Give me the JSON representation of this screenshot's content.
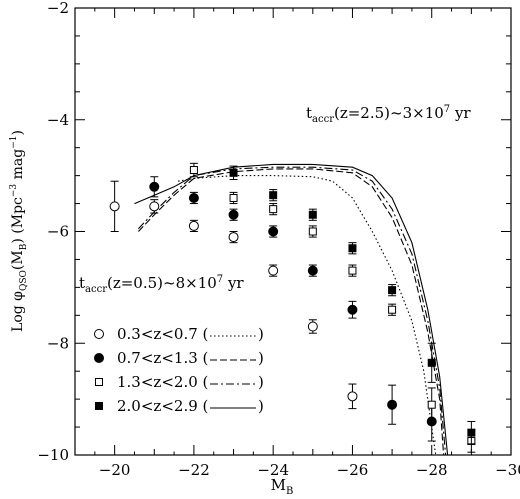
{
  "chart_data": {
    "type": "scatter",
    "title": "",
    "xlabel_main": "M",
    "xlabel_sub": "B",
    "ylabel": "Log φQSO(MB) (Mpc⁻³ mag⁻¹)",
    "xlim": [
      -19,
      -30
    ],
    "ylim": [
      -10,
      -2
    ],
    "x_ticks": [
      -20,
      -22,
      -24,
      -26,
      -28,
      -30
    ],
    "y_ticks": [
      -2,
      -4,
      -6,
      -8,
      -10
    ],
    "x_tick_labels": [
      "−20",
      "−22",
      "−24",
      "−26",
      "−28",
      "−30"
    ],
    "y_tick_labels": [
      "−2",
      "−4",
      "−6",
      "−8",
      "−10"
    ],
    "annotations": [
      {
        "text": "taccr(z=2.5)~3×10⁷ yr",
        "x": -29.2,
        "y": -4.0
      },
      {
        "text": "taccr(z=0.5)~8×10⁷ yr",
        "x": -23.8,
        "y": -6.9
      }
    ],
    "legend": {
      "placement": "bottom-left",
      "entries": [
        {
          "label": "0.3<z<0.7 (",
          "close": ")",
          "marker": "open-circle",
          "line": "dotted"
        },
        {
          "label": "0.7<z<1.3 (",
          "close": ")",
          "marker": "filled-circle",
          "line": "dashed"
        },
        {
          "label": "1.3<z<2.0 (",
          "close": ")",
          "marker": "open-square",
          "line": "dash-dot"
        },
        {
          "label": "2.0<z<2.9 (",
          "close": ")",
          "marker": "filled-square",
          "line": "solid"
        }
      ]
    },
    "series": [
      {
        "marker": "open-circle",
        "points": [
          {
            "x": -20.0,
            "y": -5.55,
            "err": 0.45
          },
          {
            "x": -21.0,
            "y": -5.55,
            "err": 0.12
          },
          {
            "x": -22.0,
            "y": -5.9,
            "err": 0.1
          },
          {
            "x": -23.0,
            "y": -6.1,
            "err": 0.1
          },
          {
            "x": -24.0,
            "y": -6.7,
            "err": 0.1
          },
          {
            "x": -25.0,
            "y": -7.7,
            "err": 0.12
          },
          {
            "x": -26.0,
            "y": -8.95,
            "err": 0.22
          }
        ]
      },
      {
        "marker": "filled-circle",
        "points": [
          {
            "x": -21.0,
            "y": -5.2,
            "err": 0.18
          },
          {
            "x": -22.0,
            "y": -5.4,
            "err": 0.1
          },
          {
            "x": -23.0,
            "y": -5.7,
            "err": 0.1
          },
          {
            "x": -24.0,
            "y": -6.0,
            "err": 0.1
          },
          {
            "x": -25.0,
            "y": -6.7,
            "err": 0.1
          },
          {
            "x": -26.0,
            "y": -7.4,
            "err": 0.15
          },
          {
            "x": -27.0,
            "y": -9.1,
            "err": 0.35
          },
          {
            "x": -28.0,
            "y": -9.4,
            "err": 0.35
          }
        ]
      },
      {
        "marker": "open-square",
        "points": [
          {
            "x": -22.0,
            "y": -4.9,
            "err": 0.12
          },
          {
            "x": -23.0,
            "y": -5.4,
            "err": 0.1
          },
          {
            "x": -24.0,
            "y": -5.6,
            "err": 0.1
          },
          {
            "x": -25.0,
            "y": -6.0,
            "err": 0.1
          },
          {
            "x": -26.0,
            "y": -6.7,
            "err": 0.1
          },
          {
            "x": -27.0,
            "y": -7.4,
            "err": 0.1
          },
          {
            "x": -28.0,
            "y": -9.1,
            "err": 0.3
          },
          {
            "x": -29.0,
            "y": -9.75,
            "err": 0.2
          }
        ]
      },
      {
        "marker": "filled-square",
        "points": [
          {
            "x": -23.0,
            "y": -4.95,
            "err": 0.12
          },
          {
            "x": -24.0,
            "y": -5.35,
            "err": 0.1
          },
          {
            "x": -25.0,
            "y": -5.7,
            "err": 0.1
          },
          {
            "x": -26.0,
            "y": -6.3,
            "err": 0.1
          },
          {
            "x": -27.0,
            "y": -7.05,
            "err": 0.1
          },
          {
            "x": -28.0,
            "y": -8.35,
            "err": 0.35
          },
          {
            "x": -29.0,
            "y": -9.6,
            "err": 0.2
          }
        ]
      }
    ],
    "curves": [
      {
        "style": "dotted",
        "points": [
          [
            -21.6,
            -5.1
          ],
          [
            -22,
            -5.05
          ],
          [
            -23,
            -5.0
          ],
          [
            -24,
            -5.0
          ],
          [
            -25,
            -5.02
          ],
          [
            -25.5,
            -5.1
          ],
          [
            -26,
            -5.4
          ],
          [
            -26.5,
            -6.0
          ],
          [
            -27,
            -6.7
          ],
          [
            -27.5,
            -7.6
          ],
          [
            -27.8,
            -8.5
          ],
          [
            -28.0,
            -9.5
          ],
          [
            -28.1,
            -10.0
          ]
        ]
      },
      {
        "style": "dashed",
        "points": [
          [
            -20.6,
            -6.0
          ],
          [
            -21,
            -5.7
          ],
          [
            -21.5,
            -5.35
          ],
          [
            -22,
            -5.05
          ],
          [
            -23,
            -4.93
          ],
          [
            -24,
            -4.88
          ],
          [
            -25,
            -4.88
          ],
          [
            -26,
            -4.95
          ],
          [
            -26.5,
            -5.2
          ],
          [
            -27,
            -5.75
          ],
          [
            -27.5,
            -6.6
          ],
          [
            -27.9,
            -7.8
          ],
          [
            -28.2,
            -9.0
          ],
          [
            -28.3,
            -10.0
          ]
        ]
      },
      {
        "style": "dash-dot",
        "points": [
          [
            -20.6,
            -5.95
          ],
          [
            -21,
            -5.65
          ],
          [
            -21.5,
            -5.3
          ],
          [
            -22,
            -5.0
          ],
          [
            -23,
            -4.88
          ],
          [
            -24,
            -4.85
          ],
          [
            -25,
            -4.85
          ],
          [
            -26,
            -4.9
          ],
          [
            -26.5,
            -5.1
          ],
          [
            -27,
            -5.6
          ],
          [
            -27.5,
            -6.4
          ],
          [
            -27.9,
            -7.6
          ],
          [
            -28.2,
            -8.8
          ],
          [
            -28.35,
            -10.0
          ]
        ]
      },
      {
        "style": "solid",
        "points": [
          [
            -20.5,
            -5.5
          ],
          [
            -21,
            -5.35
          ],
          [
            -21.5,
            -5.2
          ],
          [
            -22,
            -5.0
          ],
          [
            -23,
            -4.85
          ],
          [
            -24,
            -4.8
          ],
          [
            -25,
            -4.8
          ],
          [
            -26,
            -4.85
          ],
          [
            -26.5,
            -5.0
          ],
          [
            -27,
            -5.4
          ],
          [
            -27.5,
            -6.2
          ],
          [
            -27.9,
            -7.4
          ],
          [
            -28.2,
            -8.6
          ],
          [
            -28.4,
            -10.0
          ]
        ]
      }
    ]
  }
}
